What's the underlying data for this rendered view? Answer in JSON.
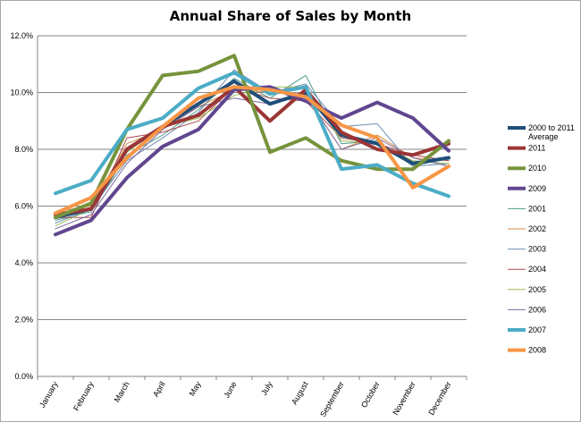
{
  "chart_data": {
    "type": "line",
    "title": "Annual Share of Sales by Month",
    "xlabel": "",
    "ylabel": "",
    "ylim": [
      0,
      12
    ],
    "y_ticks": [
      0,
      2,
      4,
      6,
      8,
      10,
      12
    ],
    "y_tick_labels": [
      "0.0%",
      "2.0%",
      "4.0%",
      "6.0%",
      "8.0%",
      "10.0%",
      "12.0%"
    ],
    "categories": [
      "January",
      "February",
      "March",
      "April",
      "May",
      "June",
      "July",
      "August",
      "September",
      "October",
      "November",
      "December"
    ],
    "grid": "horizontal",
    "legend_position": "right",
    "series": [
      {
        "name": "2000 to 2011 Average",
        "legend_lines": [
          "2000 to 2011",
          "Average"
        ],
        "color": "#1f4e79",
        "width": 4,
        "values": [
          5.6,
          5.9,
          8.0,
          8.8,
          9.6,
          10.4,
          9.6,
          10.0,
          8.5,
          8.2,
          7.5,
          7.7
        ]
      },
      {
        "name": "2011",
        "color": "#9b3535",
        "width": 4,
        "values": [
          5.7,
          5.9,
          8.0,
          8.8,
          9.2,
          10.2,
          9.0,
          10.1,
          8.6,
          8.0,
          7.8,
          8.2
        ]
      },
      {
        "name": "2010",
        "color": "#76933c",
        "width": 4,
        "values": [
          5.6,
          6.1,
          8.7,
          10.6,
          10.75,
          11.3,
          7.9,
          8.4,
          7.6,
          7.3,
          7.3,
          8.3
        ]
      },
      {
        "name": "2009",
        "color": "#60468f",
        "width": 4,
        "values": [
          5.0,
          5.5,
          7.0,
          8.1,
          8.7,
          10.1,
          10.2,
          9.7,
          9.1,
          9.65,
          9.1,
          7.95
        ]
      },
      {
        "name": "2001",
        "color": "#4e9d8d",
        "width": 1,
        "values": [
          5.5,
          5.8,
          7.8,
          8.5,
          9.4,
          10.5,
          9.8,
          10.6,
          8.2,
          8.3,
          7.4,
          7.7
        ]
      },
      {
        "name": "2002",
        "color": "#d58b45",
        "width": 1,
        "values": [
          5.8,
          6.0,
          8.2,
          8.7,
          9.5,
          10.1,
          10.0,
          9.9,
          8.0,
          8.5,
          7.7,
          7.6
        ]
      },
      {
        "name": "2003",
        "color": "#6e8fb0",
        "width": 1,
        "values": [
          5.4,
          5.9,
          7.6,
          8.4,
          9.3,
          10.8,
          10.0,
          10.3,
          8.8,
          8.9,
          7.4,
          7.5
        ]
      },
      {
        "name": "2004",
        "color": "#b04a4a",
        "width": 1,
        "values": [
          5.6,
          5.6,
          8.4,
          8.6,
          9.0,
          10.2,
          9.8,
          9.7,
          8.4,
          8.2,
          7.8,
          7.6
        ]
      },
      {
        "name": "2005",
        "color": "#9bbb59",
        "width": 1,
        "values": [
          5.3,
          5.9,
          7.9,
          8.8,
          9.1,
          9.9,
          10.2,
          10.2,
          8.3,
          8.2,
          7.6,
          7.5
        ]
      },
      {
        "name": "2006",
        "color": "#7f6aa0",
        "width": 1,
        "values": [
          5.2,
          5.7,
          7.5,
          8.7,
          9.5,
          9.8,
          9.6,
          9.9,
          8.0,
          8.4,
          7.7,
          7.4
        ]
      },
      {
        "name": "2007",
        "color": "#4bacc6",
        "width": 4,
        "values": [
          6.45,
          6.9,
          8.7,
          9.1,
          10.15,
          10.7,
          9.95,
          10.2,
          7.3,
          7.45,
          6.8,
          6.35
        ]
      },
      {
        "name": "2008",
        "color": "#f79646",
        "width": 4,
        "values": [
          5.75,
          6.3,
          7.7,
          8.8,
          9.8,
          10.2,
          10.1,
          9.85,
          8.85,
          8.4,
          6.65,
          7.4
        ]
      }
    ]
  }
}
